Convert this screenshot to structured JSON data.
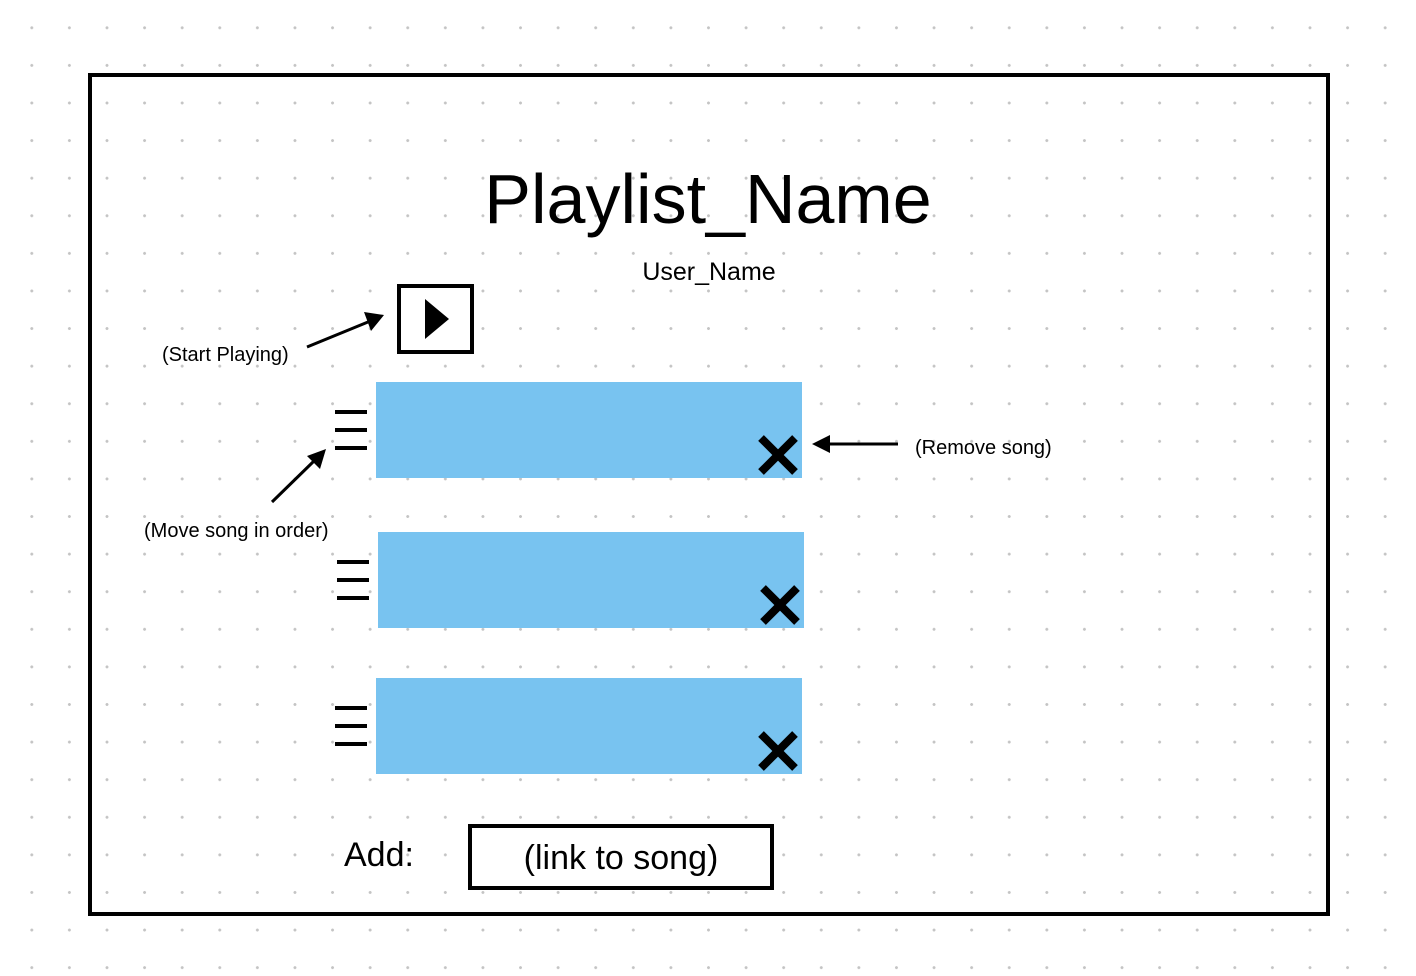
{
  "playlist": {
    "title": "Playlist_Name",
    "user": "User_Name"
  },
  "controls": {
    "play_icon": "play-icon"
  },
  "annotations": {
    "start_playing": "(Start Playing)",
    "remove_song": "(Remove song)",
    "move_song": "(Move song in order)"
  },
  "songs": [
    {
      "drag_icon": "drag-handle-icon",
      "remove_icon": "close-icon"
    },
    {
      "drag_icon": "drag-handle-icon",
      "remove_icon": "close-icon"
    },
    {
      "drag_icon": "drag-handle-icon",
      "remove_icon": "close-icon"
    }
  ],
  "add": {
    "label": "Add:",
    "placeholder": "(link to song)"
  },
  "colors": {
    "song_row": "#78c3f0",
    "border": "#000000"
  }
}
